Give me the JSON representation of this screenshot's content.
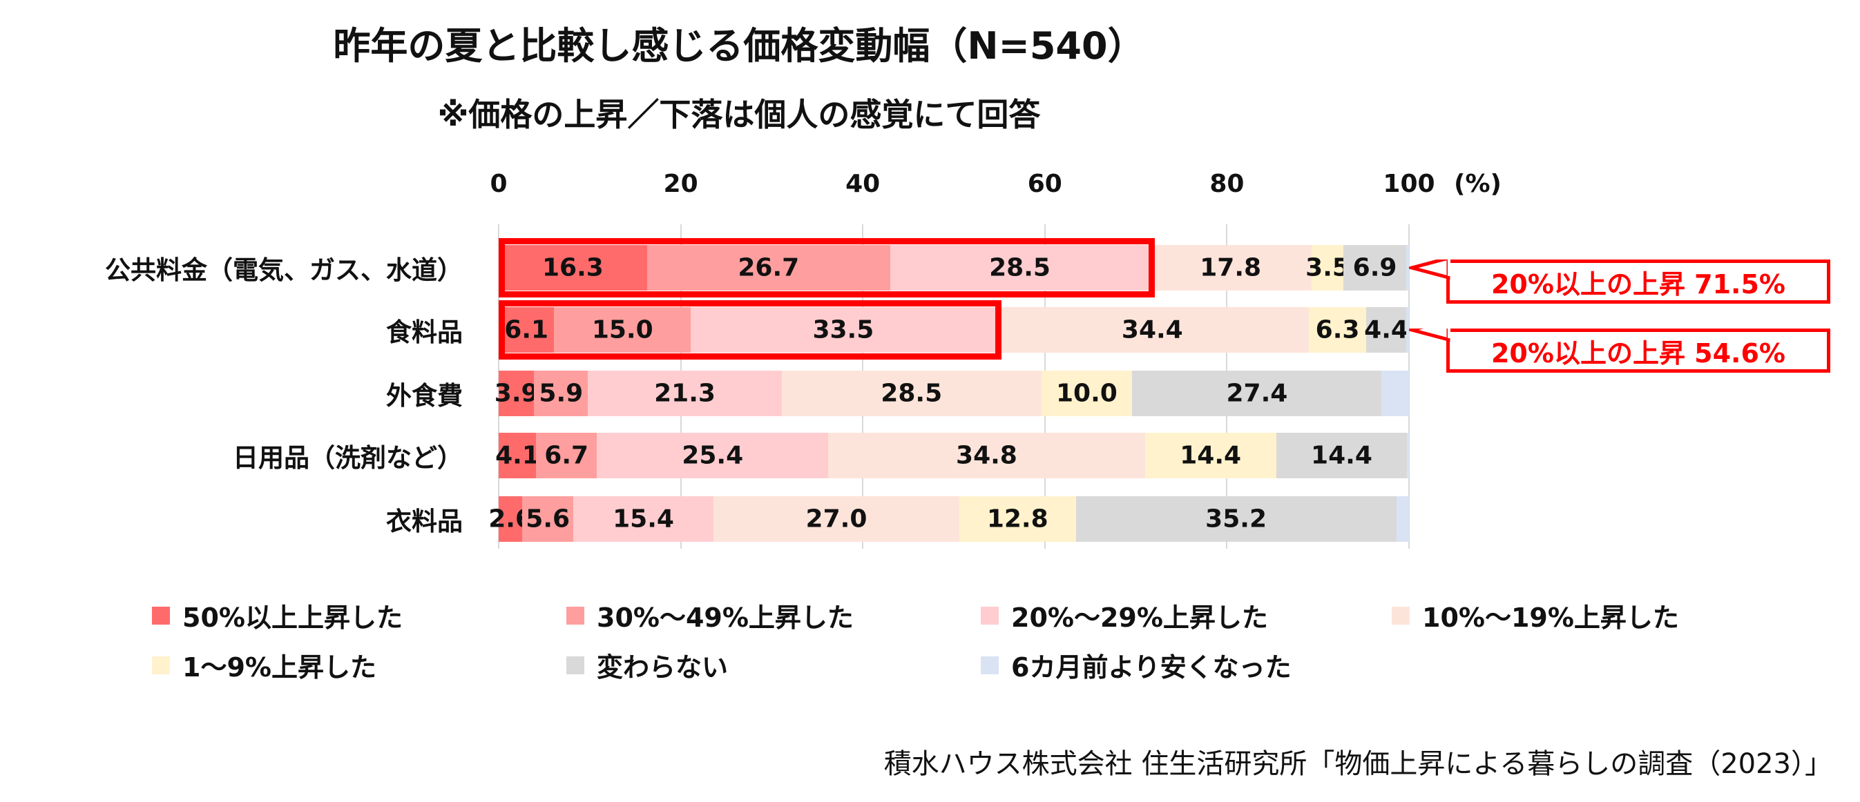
{
  "chart_data": {
    "type": "bar",
    "orientation": "horizontal-stacked-100",
    "title": "昨年の夏と比較し感じる価格変動幅（N=540）",
    "subtitle": "※価格の上昇／下落は個人の感覚にて回答",
    "xlabel": "(%)",
    "xlim": [
      0,
      100
    ],
    "xticks": [
      "0",
      "20",
      "40",
      "60",
      "80",
      "100"
    ],
    "grid": true,
    "legend_position": "bottom",
    "categories": [
      "公共料金（電気、ガス、水道）",
      "食料品",
      "外食費",
      "日用品（洗剤など）",
      "衣料品"
    ],
    "series": [
      {
        "name": "50%以上上昇した",
        "color": "#ff6b6b",
        "values": [
          16.3,
          6.1,
          3.9,
          4.1,
          2.6
        ]
      },
      {
        "name": "30%～49%上昇した",
        "color": "#ff9e9e",
        "values": [
          26.7,
          15.0,
          5.9,
          6.7,
          5.6
        ]
      },
      {
        "name": "20%～29%上昇した",
        "color": "#ffcdd0",
        "values": [
          28.5,
          33.5,
          21.3,
          25.4,
          15.4
        ]
      },
      {
        "name": "10%～19%上昇した",
        "color": "#fde4da",
        "values": [
          17.8,
          34.4,
          28.5,
          34.8,
          27.0
        ]
      },
      {
        "name": "1～9%上昇した",
        "color": "#fff2cc",
        "values": [
          3.5,
          6.3,
          10.0,
          14.4,
          12.8
        ]
      },
      {
        "name": "変わらない",
        "color": "#d9d9d9",
        "values": [
          6.9,
          4.4,
          27.4,
          14.4,
          35.2
        ]
      },
      {
        "name": "6カ月前より安くなった",
        "color": "#dae3f3",
        "values": [
          0.3,
          0.3,
          3.0,
          0.2,
          1.4
        ]
      }
    ],
    "labeled_series_count": 6,
    "annotations": [
      {
        "category_index": 0,
        "highlight_series": [
          0,
          1,
          2
        ],
        "text": "20%以上の上昇 71.5%"
      },
      {
        "category_index": 1,
        "highlight_series": [
          0,
          1,
          2
        ],
        "text": "20%以上の上昇 54.6%"
      }
    ]
  },
  "source": "積水ハウス株式会社 住生活研究所「物価上昇による暮らしの調査（2023）」"
}
